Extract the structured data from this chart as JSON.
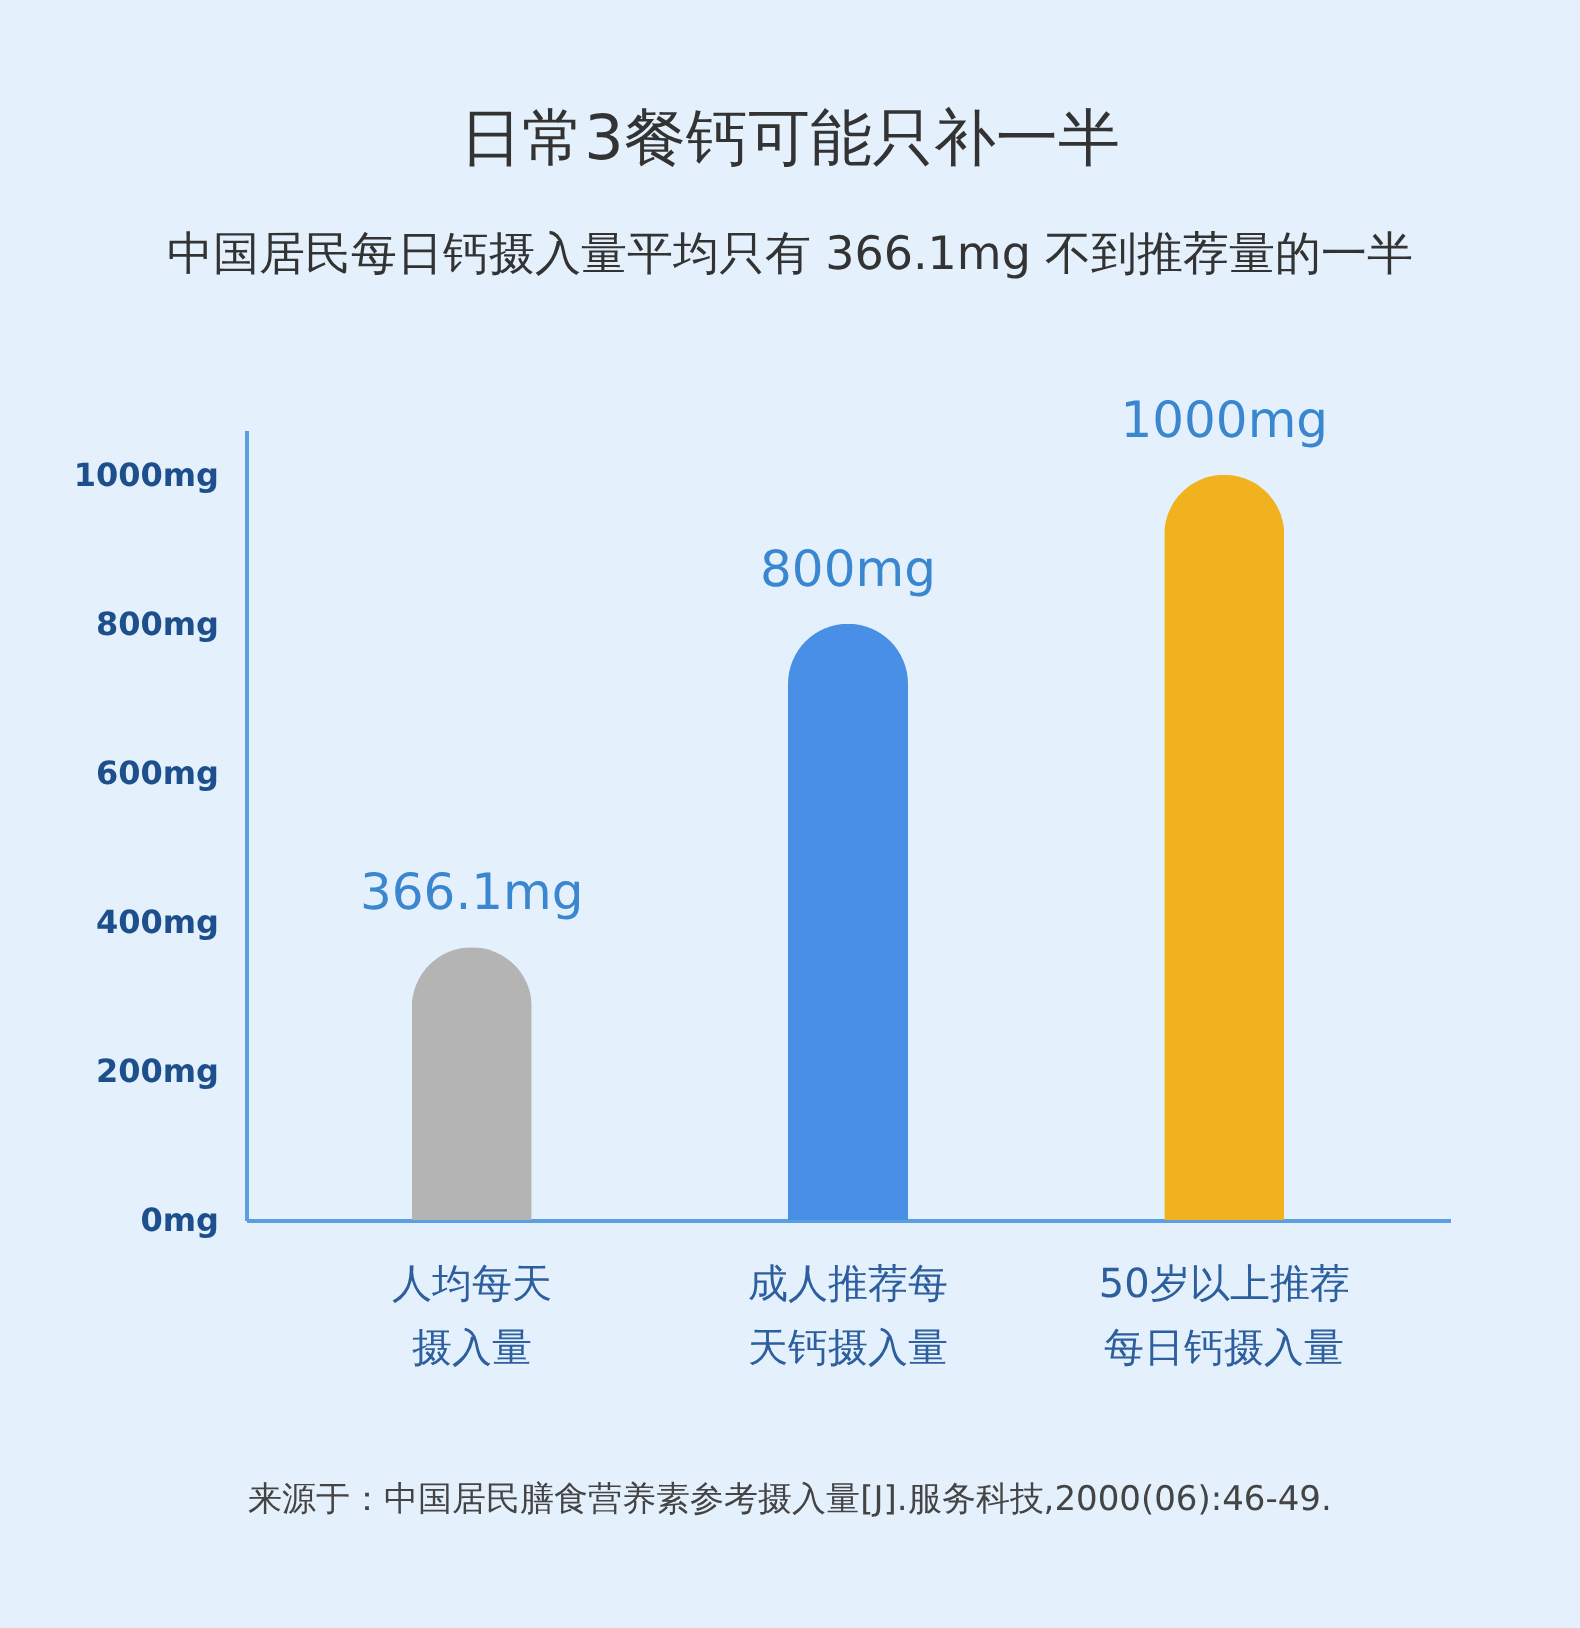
{
  "chart_data": {
    "type": "bar",
    "title": "日常3餐钙可能只补一半",
    "subtitle": "中国居民每日钙摄入量平均只有 366.1mg 不到推荐量的一半",
    "categories": [
      "人均每天摄入量",
      "成人推荐每天钙摄入量",
      "50岁以上推荐每日钙摄入量"
    ],
    "values": [
      366.1,
      800,
      1000
    ],
    "colors": [
      "#b4b4b4",
      "#4a8fe6",
      "#f0b21e"
    ],
    "value_labels": [
      "366.1mg",
      "800mg",
      "1000mg"
    ],
    "ylim": [
      0,
      1060
    ],
    "yticks": [
      {
        "value": 0,
        "label": "0mg"
      },
      {
        "value": 200,
        "label": "200mg"
      },
      {
        "value": 400,
        "label": "400mg"
      },
      {
        "value": 600,
        "label": "600mg"
      },
      {
        "value": 800,
        "label": "800mg"
      },
      {
        "value": 1000,
        "label": "1000mg"
      }
    ],
    "grid": false,
    "annotations": [
      "来源于：中国居民膳食营养素参考摄入量[J].服务科技,2000(06):46-49."
    ]
  }
}
